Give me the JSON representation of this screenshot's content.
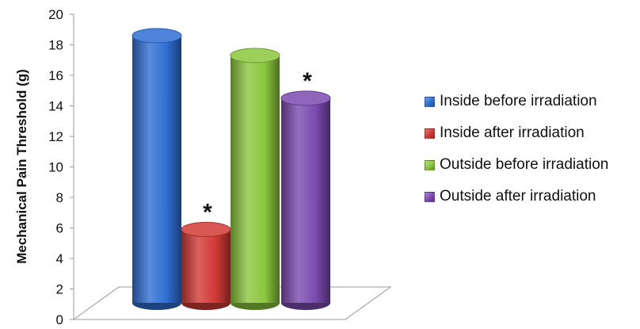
{
  "chart_data": {
    "type": "bar",
    "title": "",
    "xlabel": "",
    "ylabel": "Mechanical Pain Threshold (g)",
    "ylim": [
      0,
      20
    ],
    "yticks": [
      "0",
      "2",
      "4",
      "6",
      "8",
      "10",
      "12",
      "14",
      "16",
      "18",
      "20"
    ],
    "grid": false,
    "legend_position": "right",
    "style": "3d-cylinder",
    "series": [
      {
        "name": "Inside before irradiation",
        "value": 18.6,
        "color": "#2f6fd3",
        "annotation": ""
      },
      {
        "name": "Inside after irradiation",
        "value": 5.9,
        "color": "#d13a36",
        "annotation": "*"
      },
      {
        "name": "Outside before irradiation",
        "value": 17.3,
        "color": "#8cc63e",
        "annotation": ""
      },
      {
        "name": "Outside after irradiation",
        "value": 14.5,
        "color": "#7b4bb0",
        "annotation": "*"
      }
    ]
  }
}
